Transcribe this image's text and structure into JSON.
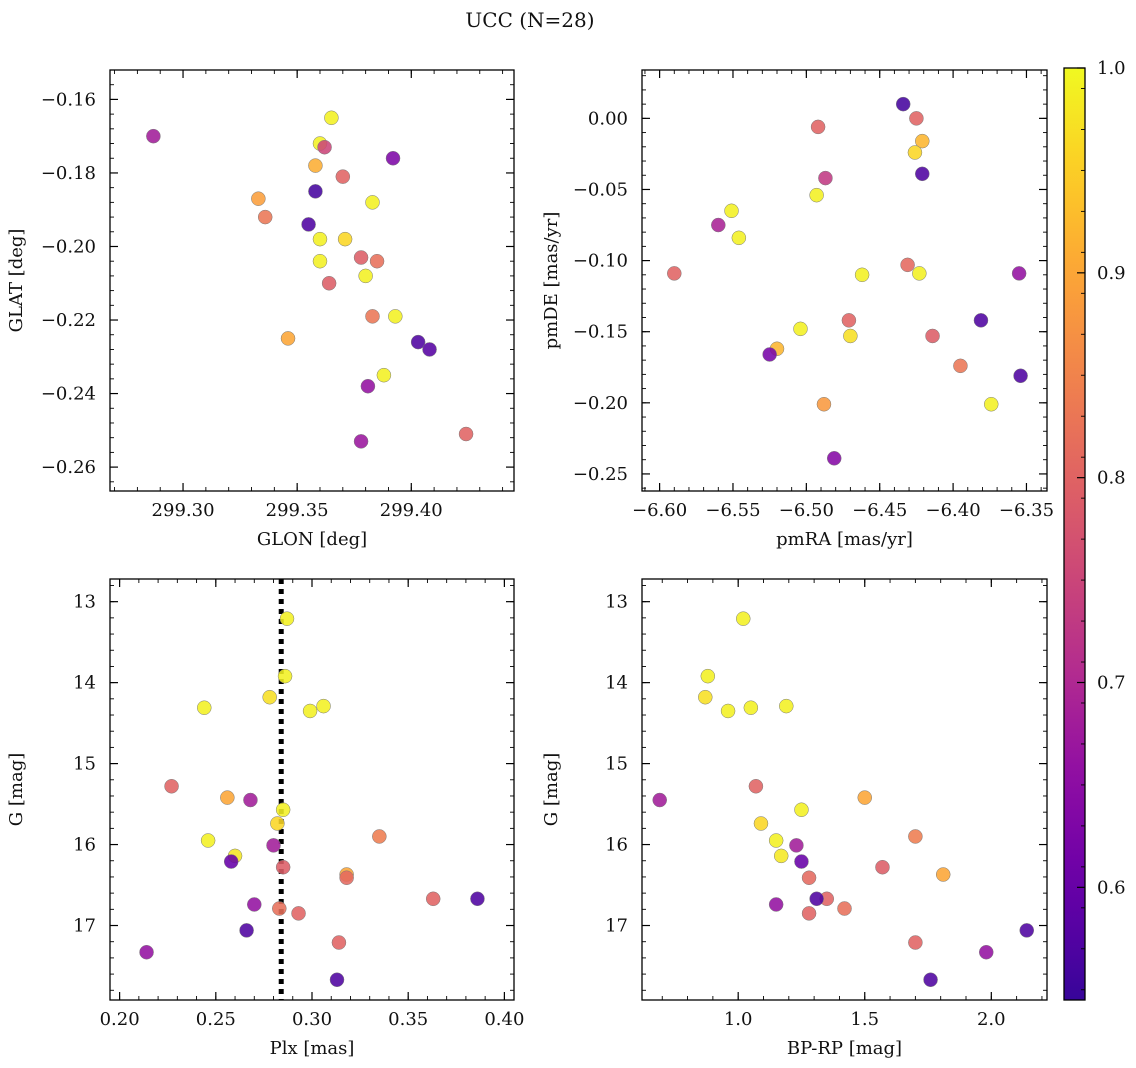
{
  "chart_data": {
    "title": "UCC (N=28)",
    "colorbar": {
      "range": [
        0.545,
        1.0
      ],
      "ticks": [
        0.6,
        0.7,
        0.8,
        0.9,
        1.0
      ],
      "tick_labels": [
        "0.6",
        "0.7",
        "0.8",
        "0.9",
        "1.0"
      ],
      "colormap": "plasma"
    },
    "panels": [
      {
        "type": "scatter",
        "xlabel": "GLON [deg]",
        "ylabel": "GLAT [deg]",
        "xlim": [
          299.268,
          299.445
        ],
        "ylim": [
          -0.2665,
          -0.152
        ],
        "xticks": [
          299.3,
          299.35,
          299.4
        ],
        "xtick_labels": [
          "299.30",
          "299.35",
          "299.40"
        ],
        "yticks": [
          -0.16,
          -0.18,
          -0.2,
          -0.22,
          -0.24,
          -0.26
        ],
        "ytick_labels": [
          "−0.16",
          "−0.18",
          "−0.20",
          "−0.22",
          "−0.24",
          "−0.26"
        ],
        "invert_y": false,
        "vline": null,
        "points": [
          {
            "x": 299.287,
            "y": -0.17,
            "c": 0.68
          },
          {
            "x": 299.365,
            "y": -0.165,
            "c": 0.99
          },
          {
            "x": 299.36,
            "y": -0.172,
            "c": 0.99
          },
          {
            "x": 299.362,
            "y": -0.173,
            "c": 0.75
          },
          {
            "x": 299.358,
            "y": -0.178,
            "c": 0.91
          },
          {
            "x": 299.392,
            "y": -0.176,
            "c": 0.63
          },
          {
            "x": 299.37,
            "y": -0.181,
            "c": 0.8
          },
          {
            "x": 299.358,
            "y": -0.185,
            "c": 0.56
          },
          {
            "x": 299.333,
            "y": -0.187,
            "c": 0.89
          },
          {
            "x": 299.383,
            "y": -0.188,
            "c": 0.99
          },
          {
            "x": 299.336,
            "y": -0.192,
            "c": 0.83
          },
          {
            "x": 299.355,
            "y": -0.194,
            "c": 0.57
          },
          {
            "x": 299.36,
            "y": -0.198,
            "c": 0.99
          },
          {
            "x": 299.371,
            "y": -0.198,
            "c": 0.96
          },
          {
            "x": 299.378,
            "y": -0.203,
            "c": 0.79
          },
          {
            "x": 299.36,
            "y": -0.204,
            "c": 0.99
          },
          {
            "x": 299.385,
            "y": -0.204,
            "c": 0.82
          },
          {
            "x": 299.38,
            "y": -0.208,
            "c": 0.99
          },
          {
            "x": 299.364,
            "y": -0.21,
            "c": 0.79
          },
          {
            "x": 299.383,
            "y": -0.219,
            "c": 0.83
          },
          {
            "x": 299.393,
            "y": -0.219,
            "c": 0.99
          },
          {
            "x": 299.346,
            "y": -0.225,
            "c": 0.9
          },
          {
            "x": 299.403,
            "y": -0.226,
            "c": 0.57
          },
          {
            "x": 299.408,
            "y": -0.228,
            "c": 0.58
          },
          {
            "x": 299.388,
            "y": -0.235,
            "c": 0.99
          },
          {
            "x": 299.381,
            "y": -0.238,
            "c": 0.66
          },
          {
            "x": 299.378,
            "y": -0.253,
            "c": 0.67
          },
          {
            "x": 299.424,
            "y": -0.251,
            "c": 0.8
          }
        ]
      },
      {
        "type": "scatter",
        "xlabel": "pmRA [mas/yr]",
        "ylabel": "pmDE [mas/yr]",
        "xlim": [
          -6.612,
          -6.336
        ],
        "ylim": [
          -0.262,
          0.034
        ],
        "xticks": [
          -6.6,
          -6.55,
          -6.5,
          -6.45,
          -6.4,
          -6.35
        ],
        "xtick_labels": [
          "−6.60",
          "−6.55",
          "−6.50",
          "−6.45",
          "−6.40",
          "−6.35"
        ],
        "yticks": [
          0.0,
          -0.05,
          -0.1,
          -0.15,
          -0.2,
          -0.25
        ],
        "ytick_labels": [
          "0.00",
          "−0.05",
          "−0.10",
          "−0.15",
          "−0.20",
          "−0.25"
        ],
        "invert_y": false,
        "vline": null,
        "points": [
          {
            "x": -6.434,
            "y": 0.01,
            "c": 0.56
          },
          {
            "x": -6.425,
            "y": 0.0,
            "c": 0.8
          },
          {
            "x": -6.492,
            "y": -0.006,
            "c": 0.8
          },
          {
            "x": -6.421,
            "y": -0.016,
            "c": 0.92
          },
          {
            "x": -6.426,
            "y": -0.024,
            "c": 0.96
          },
          {
            "x": -6.421,
            "y": -0.039,
            "c": 0.57
          },
          {
            "x": -6.487,
            "y": -0.042,
            "c": 0.73
          },
          {
            "x": -6.551,
            "y": -0.065,
            "c": 0.99
          },
          {
            "x": -6.493,
            "y": -0.054,
            "c": 0.99
          },
          {
            "x": -6.56,
            "y": -0.075,
            "c": 0.69
          },
          {
            "x": -6.546,
            "y": -0.084,
            "c": 0.99
          },
          {
            "x": -6.59,
            "y": -0.109,
            "c": 0.8
          },
          {
            "x": -6.462,
            "y": -0.11,
            "c": 0.99
          },
          {
            "x": -6.431,
            "y": -0.103,
            "c": 0.81
          },
          {
            "x": -6.423,
            "y": -0.109,
            "c": 0.99
          },
          {
            "x": -6.355,
            "y": -0.109,
            "c": 0.66
          },
          {
            "x": -6.381,
            "y": -0.142,
            "c": 0.57
          },
          {
            "x": -6.471,
            "y": -0.142,
            "c": 0.8
          },
          {
            "x": -6.504,
            "y": -0.148,
            "c": 0.99
          },
          {
            "x": -6.47,
            "y": -0.153,
            "c": 0.97
          },
          {
            "x": -6.414,
            "y": -0.153,
            "c": 0.79
          },
          {
            "x": -6.52,
            "y": -0.162,
            "c": 0.92
          },
          {
            "x": -6.525,
            "y": -0.166,
            "c": 0.62
          },
          {
            "x": -6.395,
            "y": -0.174,
            "c": 0.83
          },
          {
            "x": -6.354,
            "y": -0.181,
            "c": 0.57
          },
          {
            "x": -6.488,
            "y": -0.201,
            "c": 0.88
          },
          {
            "x": -6.374,
            "y": -0.201,
            "c": 0.99
          },
          {
            "x": -6.481,
            "y": -0.239,
            "c": 0.64
          }
        ]
      },
      {
        "type": "scatter",
        "xlabel": "Plx [mas]",
        "ylabel": "G [mag]",
        "xlim": [
          0.195,
          0.405
        ],
        "ylim": [
          17.92,
          12.72
        ],
        "xticks": [
          0.2,
          0.25,
          0.3,
          0.35,
          0.4
        ],
        "xtick_labels": [
          "0.20",
          "0.25",
          "0.30",
          "0.35",
          "0.40"
        ],
        "yticks": [
          13,
          14,
          15,
          16,
          17
        ],
        "ytick_labels": [
          "13",
          "14",
          "15",
          "16",
          "17"
        ],
        "invert_y": true,
        "vline": 0.284,
        "points": [
          {
            "x": 0.287,
            "y": 13.21,
            "c": 0.99
          },
          {
            "x": 0.286,
            "y": 13.92,
            "c": 0.99
          },
          {
            "x": 0.278,
            "y": 14.18,
            "c": 0.97
          },
          {
            "x": 0.244,
            "y": 14.31,
            "c": 0.99
          },
          {
            "x": 0.306,
            "y": 14.29,
            "c": 0.99
          },
          {
            "x": 0.299,
            "y": 14.35,
            "c": 0.99
          },
          {
            "x": 0.227,
            "y": 15.28,
            "c": 0.8
          },
          {
            "x": 0.256,
            "y": 15.42,
            "c": 0.9
          },
          {
            "x": 0.268,
            "y": 15.45,
            "c": 0.68
          },
          {
            "x": 0.285,
            "y": 15.57,
            "c": 0.99
          },
          {
            "x": 0.282,
            "y": 15.74,
            "c": 0.96
          },
          {
            "x": 0.335,
            "y": 15.9,
            "c": 0.84
          },
          {
            "x": 0.246,
            "y": 15.95,
            "c": 0.99
          },
          {
            "x": 0.28,
            "y": 16.01,
            "c": 0.68
          },
          {
            "x": 0.26,
            "y": 16.14,
            "c": 0.98
          },
          {
            "x": 0.258,
            "y": 16.21,
            "c": 0.6
          },
          {
            "x": 0.285,
            "y": 16.28,
            "c": 0.79
          },
          {
            "x": 0.318,
            "y": 16.37,
            "c": 0.9
          },
          {
            "x": 0.318,
            "y": 16.41,
            "c": 0.81
          },
          {
            "x": 0.363,
            "y": 16.67,
            "c": 0.8
          },
          {
            "x": 0.386,
            "y": 16.67,
            "c": 0.57
          },
          {
            "x": 0.27,
            "y": 16.74,
            "c": 0.66
          },
          {
            "x": 0.283,
            "y": 16.79,
            "c": 0.82
          },
          {
            "x": 0.293,
            "y": 16.85,
            "c": 0.8
          },
          {
            "x": 0.266,
            "y": 17.06,
            "c": 0.57
          },
          {
            "x": 0.314,
            "y": 17.21,
            "c": 0.8
          },
          {
            "x": 0.214,
            "y": 17.33,
            "c": 0.66
          },
          {
            "x": 0.313,
            "y": 17.67,
            "c": 0.57
          }
        ]
      },
      {
        "type": "scatter",
        "xlabel": "BP-RP [mag]",
        "ylabel": "G [mag]",
        "xlim": [
          0.62,
          2.22
        ],
        "ylim": [
          17.92,
          12.72
        ],
        "xticks": [
          1.0,
          1.5,
          2.0
        ],
        "xtick_labels": [
          "1.0",
          "1.5",
          "2.0"
        ],
        "yticks": [
          13,
          14,
          15,
          16,
          17
        ],
        "ytick_labels": [
          "13",
          "14",
          "15",
          "16",
          "17"
        ],
        "invert_y": true,
        "vline": null,
        "points": [
          {
            "x": 1.02,
            "y": 13.21,
            "c": 0.99
          },
          {
            "x": 0.88,
            "y": 13.92,
            "c": 0.99
          },
          {
            "x": 0.87,
            "y": 14.18,
            "c": 0.97
          },
          {
            "x": 0.96,
            "y": 14.35,
            "c": 0.99
          },
          {
            "x": 1.05,
            "y": 14.31,
            "c": 0.99
          },
          {
            "x": 1.19,
            "y": 14.29,
            "c": 0.99
          },
          {
            "x": 0.69,
            "y": 15.45,
            "c": 0.68
          },
          {
            "x": 1.07,
            "y": 15.28,
            "c": 0.8
          },
          {
            "x": 1.5,
            "y": 15.42,
            "c": 0.9
          },
          {
            "x": 1.25,
            "y": 15.57,
            "c": 0.99
          },
          {
            "x": 1.09,
            "y": 15.74,
            "c": 0.96
          },
          {
            "x": 1.7,
            "y": 15.9,
            "c": 0.84
          },
          {
            "x": 1.15,
            "y": 15.95,
            "c": 0.99
          },
          {
            "x": 1.23,
            "y": 16.01,
            "c": 0.68
          },
          {
            "x": 1.17,
            "y": 16.14,
            "c": 0.98
          },
          {
            "x": 1.25,
            "y": 16.21,
            "c": 0.6
          },
          {
            "x": 1.57,
            "y": 16.28,
            "c": 0.79
          },
          {
            "x": 1.81,
            "y": 16.37,
            "c": 0.9
          },
          {
            "x": 1.28,
            "y": 16.41,
            "c": 0.81
          },
          {
            "x": 1.35,
            "y": 16.67,
            "c": 0.8
          },
          {
            "x": 1.31,
            "y": 16.67,
            "c": 0.57
          },
          {
            "x": 1.15,
            "y": 16.74,
            "c": 0.66
          },
          {
            "x": 1.42,
            "y": 16.79,
            "c": 0.82
          },
          {
            "x": 1.28,
            "y": 16.85,
            "c": 0.8
          },
          {
            "x": 2.14,
            "y": 17.06,
            "c": 0.57
          },
          {
            "x": 1.7,
            "y": 17.21,
            "c": 0.8
          },
          {
            "x": 1.98,
            "y": 17.33,
            "c": 0.66
          },
          {
            "x": 1.76,
            "y": 17.67,
            "c": 0.57
          }
        ]
      }
    ]
  }
}
